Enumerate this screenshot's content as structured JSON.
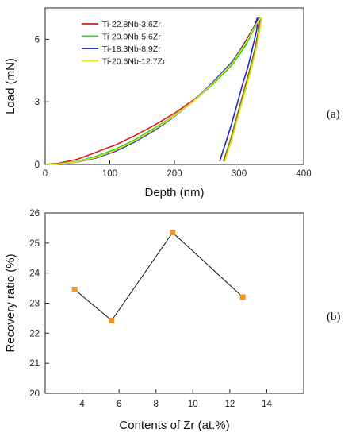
{
  "chart_data": [
    {
      "type": "line",
      "panel_label": "(a)",
      "xlabel": "Depth (nm)",
      "ylabel": "Load (mN)",
      "xlim": [
        0,
        400
      ],
      "ylim": [
        0,
        7.5
      ],
      "xticks": [
        0,
        100,
        200,
        300,
        400
      ],
      "yticks": [
        0,
        3,
        6
      ],
      "legend_position": "top-left",
      "series": [
        {
          "name": "Ti-22.8Nb-3.6Zr",
          "color": "#e8161b",
          "loading": [
            [
              0,
              0
            ],
            [
              20,
              0.05
            ],
            [
              50,
              0.25
            ],
            [
              80,
              0.6
            ],
            [
              110,
              0.95
            ],
            [
              140,
              1.4
            ],
            [
              170,
              1.9
            ],
            [
              200,
              2.45
            ],
            [
              230,
              3.1
            ],
            [
              260,
              3.9
            ],
            [
              290,
              4.9
            ],
            [
              310,
              5.9
            ],
            [
              325,
              6.7
            ],
            [
              330,
              7.0
            ]
          ],
          "unloading": [
            [
              333,
              7.0
            ],
            [
              330,
              6.4
            ],
            [
              325,
              5.6
            ],
            [
              318,
              4.7
            ],
            [
              310,
              3.8
            ],
            [
              302,
              2.9
            ],
            [
              294,
              2.0
            ],
            [
              287,
              1.2
            ],
            [
              280,
              0.55
            ],
            [
              276,
              0.15
            ]
          ]
        },
        {
          "name": "Ti-20.9Nb-5.6Zr",
          "color": "#19d219",
          "loading": [
            [
              0,
              0
            ],
            [
              20,
              0.03
            ],
            [
              50,
              0.15
            ],
            [
              80,
              0.4
            ],
            [
              110,
              0.75
            ],
            [
              140,
              1.2
            ],
            [
              170,
              1.75
            ],
            [
              200,
              2.35
            ],
            [
              230,
              3.05
            ],
            [
              260,
              3.85
            ],
            [
              290,
              4.8
            ],
            [
              310,
              5.7
            ],
            [
              325,
              6.6
            ],
            [
              332,
              7.0
            ]
          ],
          "unloading": [
            [
              334,
              7.0
            ],
            [
              331,
              6.4
            ],
            [
              326,
              5.6
            ],
            [
              319,
              4.7
            ],
            [
              311,
              3.8
            ],
            [
              303,
              2.9
            ],
            [
              295,
              2.0
            ],
            [
              288,
              1.2
            ],
            [
              281,
              0.55
            ],
            [
              277,
              0.15
            ]
          ]
        },
        {
          "name": "Ti-18.3Nb-8.9Zr",
          "color": "#1b28c9",
          "loading": [
            [
              0,
              0
            ],
            [
              20,
              0.02
            ],
            [
              50,
              0.12
            ],
            [
              80,
              0.32
            ],
            [
              110,
              0.65
            ],
            [
              140,
              1.1
            ],
            [
              170,
              1.65
            ],
            [
              200,
              2.3
            ],
            [
              230,
              3.05
            ],
            [
              260,
              3.95
            ],
            [
              290,
              4.95
            ],
            [
              310,
              5.85
            ],
            [
              325,
              6.7
            ],
            [
              328,
              7.0
            ]
          ],
          "unloading": [
            [
              330,
              7.0
            ],
            [
              327,
              6.4
            ],
            [
              321,
              5.6
            ],
            [
              314,
              4.7
            ],
            [
              305,
              3.8
            ],
            [
              297,
              2.9
            ],
            [
              289,
              2.0
            ],
            [
              281,
              1.2
            ],
            [
              274,
              0.55
            ],
            [
              270,
              0.15
            ]
          ]
        },
        {
          "name": "Ti-20.6Nb-12.7Zr",
          "color": "#e8e21a",
          "loading": [
            [
              0,
              0
            ],
            [
              20,
              0.02
            ],
            [
              50,
              0.13
            ],
            [
              80,
              0.35
            ],
            [
              110,
              0.7
            ],
            [
              140,
              1.15
            ],
            [
              170,
              1.7
            ],
            [
              200,
              2.32
            ],
            [
              230,
              3.05
            ],
            [
              260,
              3.9
            ],
            [
              290,
              4.88
            ],
            [
              310,
              5.8
            ],
            [
              325,
              6.65
            ],
            [
              333,
              7.0
            ]
          ],
          "unloading": [
            [
              335,
              7.0
            ],
            [
              332,
              6.4
            ],
            [
              327,
              5.6
            ],
            [
              320,
              4.7
            ],
            [
              312,
              3.8
            ],
            [
              304,
              2.9
            ],
            [
              296,
              2.0
            ],
            [
              289,
              1.2
            ],
            [
              282,
              0.55
            ],
            [
              278,
              0.15
            ]
          ]
        }
      ]
    },
    {
      "type": "line",
      "panel_label": "(b)",
      "xlabel": "Contents of Zr (at.%)",
      "ylabel": "Recovery ratio (%)",
      "xlim": [
        2,
        16
      ],
      "ylim": [
        20,
        26
      ],
      "xticks": [
        4,
        6,
        8,
        10,
        12,
        14
      ],
      "yticks": [
        20,
        21,
        22,
        23,
        24,
        25,
        26
      ],
      "marker_color": "#f7921e",
      "line_color": "#111111",
      "x": [
        3.6,
        5.6,
        8.9,
        12.7
      ],
      "y": [
        23.45,
        22.42,
        25.35,
        23.2
      ]
    }
  ]
}
